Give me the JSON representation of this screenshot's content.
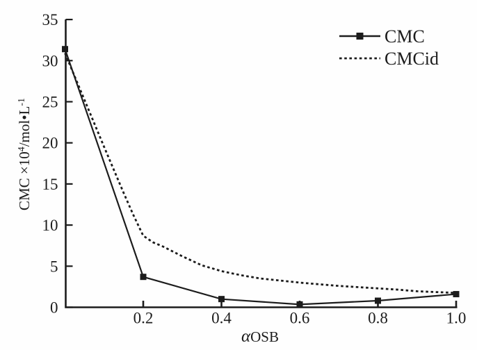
{
  "chart_data": {
    "type": "line",
    "title": "",
    "xlabel_alpha": "α",
    "xlabel_sub": "OSB",
    "ylabel_main": "CMC ×10",
    "ylabel_sup": "4",
    "ylabel_rest": "/mol•L",
    "ylabel_sup2": "-1",
    "xlim": [
      0,
      1.0
    ],
    "ylim": [
      0,
      35
    ],
    "xticks": [
      0.2,
      0.4,
      0.6,
      0.8,
      1.0
    ],
    "xtick_labels": [
      "0.2",
      "0.4",
      "0.6",
      "0.8",
      "1.0"
    ],
    "yticks": [
      0,
      5,
      10,
      15,
      20,
      25,
      30,
      35
    ],
    "ytick_labels": [
      "0",
      "5",
      "10",
      "15",
      "20",
      "25",
      "30",
      "35"
    ],
    "grid": false,
    "legend_position": "top-right",
    "series": [
      {
        "name": "CMC",
        "style": "solid",
        "marker": "square",
        "x": [
          0,
          0.2,
          0.4,
          0.6,
          0.8,
          1.0
        ],
        "y": [
          31.4,
          3.7,
          1.0,
          0.35,
          0.8,
          1.6
        ]
      },
      {
        "name": "CMCid",
        "style": "dashed",
        "marker": "none",
        "x": [
          0,
          0.05,
          0.1,
          0.15,
          0.175,
          0.2,
          0.225,
          0.25,
          0.3,
          0.35,
          0.4,
          0.45,
          0.5,
          0.55,
          0.6,
          0.65,
          0.7,
          0.75,
          0.8,
          0.85,
          0.9,
          0.95,
          1.0
        ],
        "y": [
          30.9,
          25.2,
          19.5,
          13.9,
          11.2,
          8.7,
          7.9,
          7.4,
          6.2,
          5.1,
          4.4,
          3.9,
          3.5,
          3.25,
          3.0,
          2.8,
          2.6,
          2.45,
          2.3,
          2.15,
          1.95,
          1.85,
          1.75
        ]
      }
    ],
    "line_color": "#1c1c1c"
  }
}
